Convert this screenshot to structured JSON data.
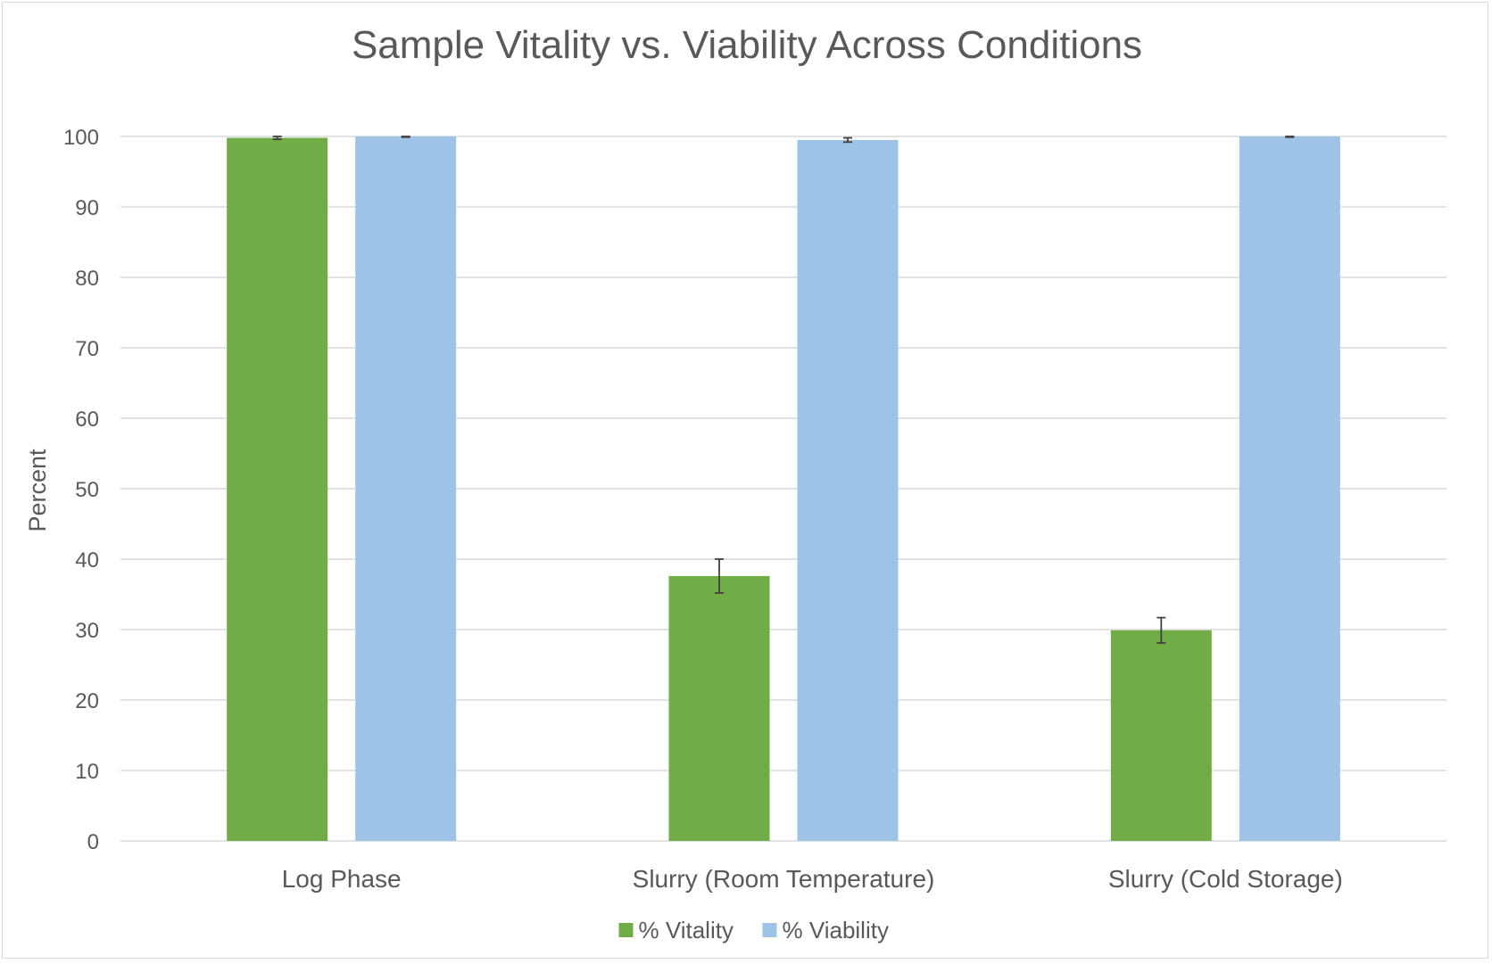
{
  "chart_data": {
    "type": "bar",
    "title": "Sample Vitality vs. Viability Across Conditions",
    "xlabel": "",
    "ylabel": "Percent",
    "ylim": [
      0,
      100
    ],
    "yticks": [
      0,
      10,
      20,
      30,
      40,
      50,
      60,
      70,
      80,
      90,
      100
    ],
    "grid": true,
    "legend_position": "bottom",
    "categories": [
      "Log Phase",
      "Slurry (Room Temperature)",
      "Slurry (Cold Storage)"
    ],
    "series": [
      {
        "name": "% Vitality",
        "color": "#70ad47",
        "values": [
          99.8,
          37.6,
          29.9
        ],
        "errors": [
          0.2,
          2.4,
          1.8
        ]
      },
      {
        "name": "% Viability",
        "color": "#9dc3e6",
        "values": [
          100,
          99.5,
          100
        ],
        "errors": [
          0.1,
          0.3,
          0.1
        ]
      }
    ]
  }
}
